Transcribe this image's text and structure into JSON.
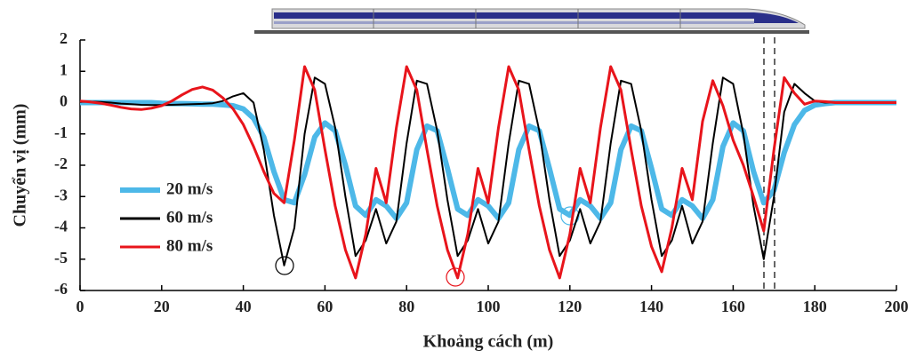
{
  "chart_data": {
    "type": "line",
    "xlabel": "Khoảng cách  (m)",
    "ylabel": "Chuyển vị  (mm)",
    "x": [
      0,
      2.5,
      5,
      7.5,
      10,
      12.5,
      15,
      17.5,
      20,
      22.5,
      25,
      27.5,
      30,
      32.5,
      35,
      37.5,
      40,
      42.5,
      45,
      47.5,
      50,
      52.5,
      55,
      57.5,
      60,
      62.5,
      65,
      67.5,
      70,
      72.5,
      75,
      77.5,
      80,
      82.5,
      85,
      87.5,
      90,
      92.5,
      95,
      97.5,
      100,
      102.5,
      105,
      107.5,
      110,
      112.5,
      115,
      117.5,
      120,
      122.5,
      125,
      127.5,
      130,
      132.5,
      135,
      137.5,
      140,
      142.5,
      145,
      147.5,
      150,
      152.5,
      155,
      157.5,
      160,
      162.5,
      165,
      167.5,
      170,
      172.5,
      175,
      177.5,
      180,
      182.5,
      185,
      187.5,
      190,
      192.5,
      195,
      197.5,
      200
    ],
    "series": [
      {
        "name": "20 m/s",
        "color": "#4db8e8",
        "values": [
          0,
          0,
          0,
          0,
          0,
          0,
          0,
          0,
          -0.02,
          -0.03,
          -0.03,
          -0.04,
          -0.05,
          -0.05,
          -0.07,
          -0.1,
          -0.2,
          -0.5,
          -1.1,
          -2.2,
          -3.1,
          -3.2,
          -2.3,
          -1.1,
          -0.65,
          -0.9,
          -2,
          -3.3,
          -3.6,
          -3.1,
          -3.3,
          -3.7,
          -3.2,
          -1.5,
          -0.75,
          -0.9,
          -2.1,
          -3.4,
          -3.6,
          -3.1,
          -3.3,
          -3.7,
          -3.2,
          -1.5,
          -0.75,
          -0.9,
          -2.1,
          -3.4,
          -3.6,
          -3.1,
          -3.3,
          -3.7,
          -3.2,
          -1.5,
          -0.75,
          -0.9,
          -2.1,
          -3.4,
          -3.6,
          -3.1,
          -3.3,
          -3.7,
          -3.1,
          -1.4,
          -0.65,
          -0.9,
          -2.2,
          -3.2,
          -2.8,
          -1.6,
          -0.7,
          -0.25,
          -0.08,
          -0.03,
          0,
          0,
          0,
          0,
          0,
          0,
          0
        ]
      },
      {
        "name": "60 m/s",
        "color": "#000000",
        "values": [
          0.02,
          0.03,
          0.02,
          0,
          -0.03,
          -0.05,
          -0.07,
          -0.08,
          -0.08,
          -0.07,
          -0.06,
          -0.05,
          -0.04,
          -0.02,
          0.05,
          0.2,
          0.3,
          0,
          -1.5,
          -3.6,
          -5.2,
          -4,
          -1,
          0.8,
          0.6,
          -0.8,
          -3,
          -4.9,
          -4.4,
          -3.4,
          -4.5,
          -3.8,
          -1.3,
          0.7,
          0.6,
          -0.9,
          -3.1,
          -4.9,
          -4.4,
          -3.4,
          -4.5,
          -3.8,
          -1.3,
          0.7,
          0.6,
          -0.9,
          -3.1,
          -4.9,
          -4.4,
          -3.4,
          -4.5,
          -3.8,
          -1.3,
          0.7,
          0.6,
          -0.9,
          -3.1,
          -4.9,
          -4.4,
          -3.3,
          -4.5,
          -3.8,
          -1.3,
          0.8,
          0.6,
          -1,
          -3.3,
          -5,
          -3,
          -0.3,
          0.6,
          0.3,
          0.05,
          0,
          0,
          0,
          0,
          0,
          0,
          0,
          0
        ]
      },
      {
        "name": "80 m/s",
        "color": "#e8141b",
        "values": [
          0.05,
          0.02,
          -0.02,
          -0.08,
          -0.15,
          -0.2,
          -0.22,
          -0.18,
          -0.1,
          0.05,
          0.25,
          0.42,
          0.5,
          0.4,
          0.15,
          -0.2,
          -0.7,
          -1.4,
          -2.2,
          -2.9,
          -3.2,
          -1.2,
          1.15,
          0.4,
          -1.5,
          -3.3,
          -4.7,
          -5.6,
          -4.2,
          -2.1,
          -3.2,
          -0.8,
          1.15,
          0.4,
          -1.5,
          -3.3,
          -4.7,
          -5.6,
          -4.2,
          -2.1,
          -3.2,
          -0.8,
          1.15,
          0.4,
          -1.5,
          -3.3,
          -4.7,
          -5.6,
          -4.2,
          -2.1,
          -3.2,
          -0.8,
          1.15,
          0.4,
          -1.5,
          -3.3,
          -4.6,
          -5.4,
          -4,
          -2.1,
          -3.1,
          -0.6,
          0.7,
          -0.1,
          -1.2,
          -2,
          -3,
          -4.1,
          -1.5,
          0.8,
          0.3,
          -0.05,
          0.05,
          0.03,
          0,
          0,
          0,
          0,
          0,
          0,
          0
        ]
      }
    ],
    "xlim": [
      0,
      200
    ],
    "xticks": [
      0,
      20,
      40,
      60,
      80,
      100,
      120,
      140,
      160,
      180,
      200
    ],
    "ylim": [
      -6,
      2
    ],
    "yticks": [
      -6,
      -5,
      -4,
      -3,
      -2,
      -1,
      0,
      1,
      2
    ],
    "legend": "left"
  }
}
